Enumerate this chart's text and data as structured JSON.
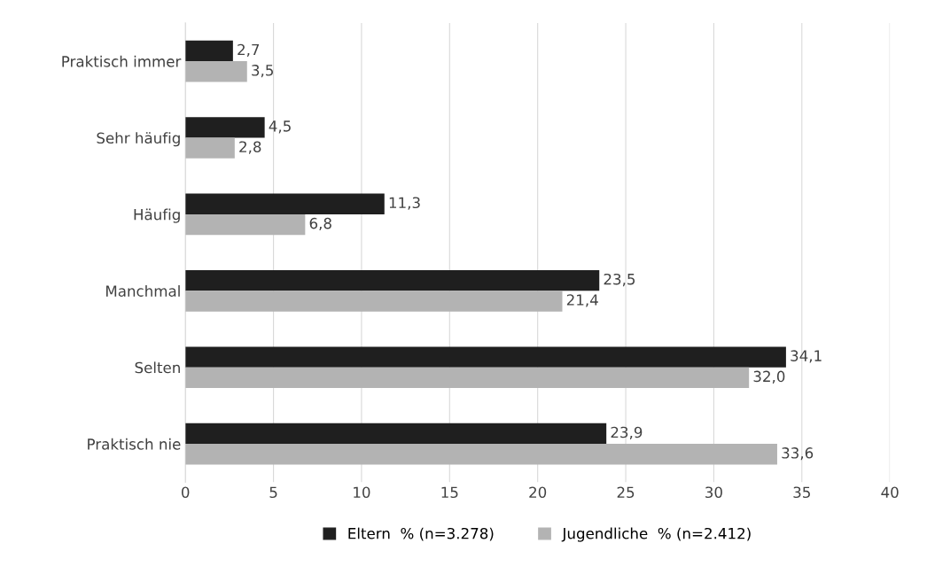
{
  "chart_data": {
    "type": "bar",
    "orientation": "horizontal",
    "categories": [
      "Praktisch immer",
      "Sehr häufig",
      "Häufig",
      "Manchmal",
      "Selten",
      "Praktisch nie"
    ],
    "series": [
      {
        "name": "Eltern  % (n=3.278)",
        "color": "#1f1f1f",
        "values": [
          2.7,
          4.5,
          11.3,
          23.5,
          34.1,
          23.9
        ],
        "value_labels": [
          "2,7",
          "4,5",
          "11,3",
          "23,5",
          "34,1",
          "23,9"
        ]
      },
      {
        "name": "Jugendliche  % (n=2.412)",
        "color": "#b3b3b3",
        "values": [
          3.5,
          2.8,
          6.8,
          21.4,
          32.0,
          33.6
        ],
        "value_labels": [
          "3,5",
          "2,8",
          "6,8",
          "21,4",
          "32,0",
          "33,6"
        ]
      }
    ],
    "xlim": [
      0,
      40
    ],
    "xticks": [
      0,
      5,
      10,
      15,
      20,
      25,
      30,
      35,
      40
    ],
    "grid": "x",
    "legend": "bottom"
  }
}
